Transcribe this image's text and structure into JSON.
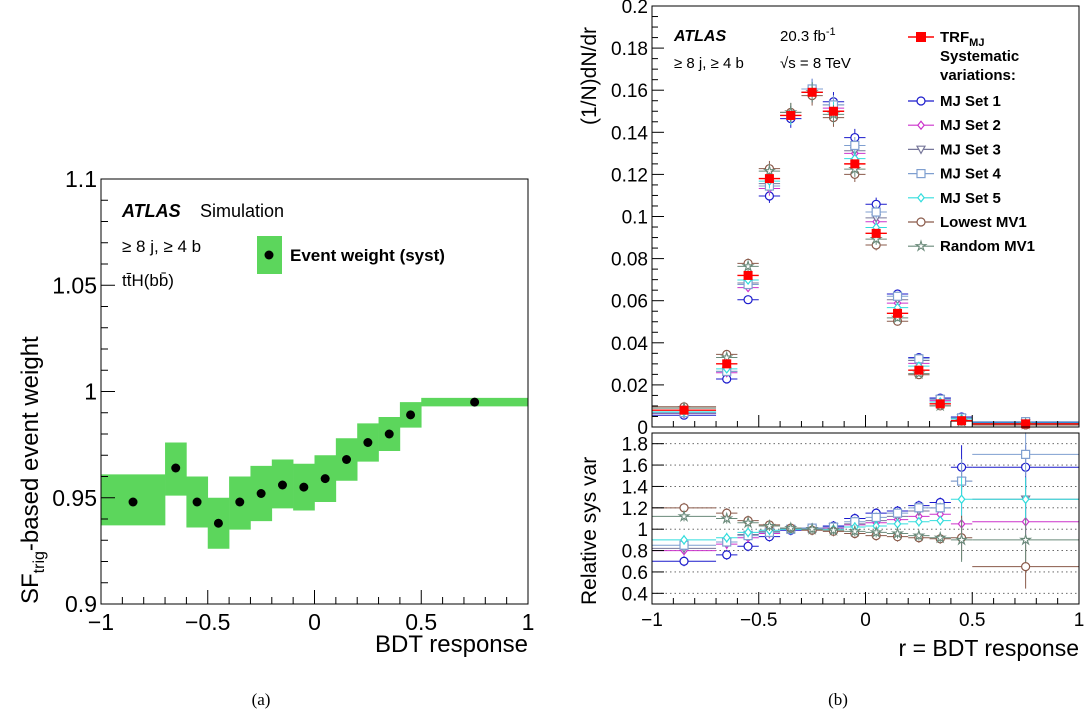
{
  "captions": [
    "(a)",
    "(b)"
  ],
  "colors": {
    "band": "#5cd65c",
    "trf": "#ff0000",
    "set1": "#1a1acc",
    "set2": "#cc33cc",
    "set3": "#77779a",
    "set4": "#7f9fd0",
    "set5": "#33dddd",
    "lowest": "#8a5a4a",
    "random": "#6a8a7a"
  },
  "chart_data": [
    {
      "type": "scatter",
      "panel": "a",
      "xlabel": "BDT response",
      "ylabel_main": "SF",
      "ylabel_sub": "trig",
      "ylabel_rest": "-based event weight",
      "xlim": [
        -1,
        1
      ],
      "ylim": [
        0.9,
        1.1
      ],
      "x_ticks": [
        "−1",
        "−0.5",
        "0",
        "0.5",
        "1"
      ],
      "y_ticks": [
        "0.9",
        "0.95",
        "1",
        "1.05",
        "1.1"
      ],
      "atlas_label": "ATLAS",
      "atlas_suffix": "Simulation",
      "selection_label": "≥ 8 j, ≥ 4 b",
      "process_label": "tt̄H(bb̄)",
      "legend": "Event weight (syst)",
      "bins": [
        {
          "lo": -1.0,
          "hi": -0.7,
          "y": 0.948,
          "band_lo": 0.937,
          "band_hi": 0.961
        },
        {
          "lo": -0.7,
          "hi": -0.6,
          "y": 0.964,
          "band_lo": 0.951,
          "band_hi": 0.976
        },
        {
          "lo": -0.6,
          "hi": -0.5,
          "y": 0.948,
          "band_lo": 0.936,
          "band_hi": 0.96
        },
        {
          "lo": -0.5,
          "hi": -0.4,
          "y": 0.938,
          "band_lo": 0.926,
          "band_hi": 0.95
        },
        {
          "lo": -0.4,
          "hi": -0.3,
          "y": 0.948,
          "band_lo": 0.935,
          "band_hi": 0.96
        },
        {
          "lo": -0.3,
          "hi": -0.2,
          "y": 0.952,
          "band_lo": 0.939,
          "band_hi": 0.965
        },
        {
          "lo": -0.2,
          "hi": -0.1,
          "y": 0.956,
          "band_lo": 0.945,
          "band_hi": 0.968
        },
        {
          "lo": -0.1,
          "hi": 0.0,
          "y": 0.955,
          "band_lo": 0.944,
          "band_hi": 0.966
        },
        {
          "lo": 0.0,
          "hi": 0.1,
          "y": 0.959,
          "band_lo": 0.948,
          "band_hi": 0.97
        },
        {
          "lo": 0.1,
          "hi": 0.2,
          "y": 0.968,
          "band_lo": 0.958,
          "band_hi": 0.978
        },
        {
          "lo": 0.2,
          "hi": 0.3,
          "y": 0.976,
          "band_lo": 0.967,
          "band_hi": 0.985
        },
        {
          "lo": 0.3,
          "hi": 0.4,
          "y": 0.98,
          "band_lo": 0.972,
          "band_hi": 0.988
        },
        {
          "lo": 0.4,
          "hi": 0.5,
          "y": 0.989,
          "band_lo": 0.983,
          "band_hi": 0.995
        },
        {
          "lo": 0.5,
          "hi": 1.0,
          "y": 0.995,
          "band_lo": 0.993,
          "band_hi": 0.997
        }
      ]
    },
    {
      "type": "scatter",
      "panel": "b",
      "xlabel": "r  =  BDT response",
      "ylabel_top": "(1/N)dN/dr",
      "ylabel_bottom": "Relative sys var",
      "xlim": [
        -1,
        1
      ],
      "ylim_top": [
        0,
        0.2
      ],
      "ylim_bottom": [
        0.3,
        1.9
      ],
      "x_ticks": [
        "−1",
        "−0.5",
        "0",
        "0.5",
        "1"
      ],
      "y_ticks_top": [
        "0.02",
        "0.04",
        "0.06",
        "0.08",
        "0.1",
        "0.12",
        "0.14",
        "0.16",
        "0.18",
        "0.2"
      ],
      "y_ticks_bottom": [
        "0.4",
        "0.6",
        "0.8",
        "1",
        "1.2",
        "1.4",
        "1.6",
        "1.8"
      ],
      "y_zero_label": "0",
      "atlas_label": "ATLAS",
      "selection_label": "≥ 8 j, ≥ 4 b",
      "lumi_label": "20.3 fb",
      "lumi_sup": "-1",
      "energy_label": "√s = 8 TeV",
      "legend": {
        "nominal": "TRF",
        "nominal_sub": "MJ",
        "header1": "Systematic",
        "header2": "variations:",
        "entries": [
          "MJ Set 1",
          "MJ Set 2",
          "MJ Set 3",
          "MJ Set 4",
          "MJ Set 5",
          "Lowest MV1",
          "Random MV1"
        ]
      },
      "bins": [
        {
          "lo": -1.0,
          "hi": -0.7,
          "nominal": 0.008
        },
        {
          "lo": -0.7,
          "hi": -0.6,
          "nominal": 0.03
        },
        {
          "lo": -0.6,
          "hi": -0.5,
          "nominal": 0.072
        },
        {
          "lo": -0.5,
          "hi": -0.4,
          "nominal": 0.118
        },
        {
          "lo": -0.4,
          "hi": -0.3,
          "nominal": 0.148
        },
        {
          "lo": -0.3,
          "hi": -0.2,
          "nominal": 0.159
        },
        {
          "lo": -0.2,
          "hi": -0.1,
          "nominal": 0.15
        },
        {
          "lo": -0.1,
          "hi": 0.0,
          "nominal": 0.125
        },
        {
          "lo": 0.0,
          "hi": 0.1,
          "nominal": 0.092
        },
        {
          "lo": 0.1,
          "hi": 0.2,
          "nominal": 0.054
        },
        {
          "lo": 0.2,
          "hi": 0.3,
          "nominal": 0.027
        },
        {
          "lo": 0.3,
          "hi": 0.4,
          "nominal": 0.011
        },
        {
          "lo": 0.4,
          "hi": 0.5,
          "nominal": 0.003
        },
        {
          "lo": 0.5,
          "hi": 1.0,
          "nominal": 0.0015
        }
      ],
      "ratios": [
        {
          "name": "MJ Set 1",
          "values": [
            0.7,
            0.76,
            0.84,
            0.93,
            0.99,
            1.01,
            1.03,
            1.1,
            1.15,
            1.17,
            1.22,
            1.25,
            1.58,
            1.58
          ]
        },
        {
          "name": "MJ Set 2",
          "values": [
            0.8,
            0.86,
            0.92,
            0.96,
            1.0,
            1.0,
            1.01,
            1.04,
            1.06,
            1.09,
            1.12,
            1.14,
            1.05,
            1.07
          ]
        },
        {
          "name": "MJ Set 3",
          "values": [
            0.82,
            0.88,
            0.95,
            0.98,
            1.0,
            1.0,
            1.02,
            1.05,
            1.08,
            1.12,
            1.17,
            1.2,
            1.45,
            1.28
          ]
        },
        {
          "name": "MJ Set 4",
          "values": [
            0.85,
            0.88,
            0.94,
            0.97,
            1.0,
            1.01,
            1.02,
            1.07,
            1.11,
            1.15,
            1.2,
            1.2,
            1.45,
            1.7
          ]
        },
        {
          "name": "MJ Set 5",
          "values": [
            0.9,
            0.92,
            0.97,
            0.99,
            1.0,
            1.0,
            1.0,
            1.02,
            1.03,
            1.05,
            1.07,
            1.08,
            1.28,
            1.28
          ]
        },
        {
          "name": "Lowest MV1",
          "values": [
            1.2,
            1.15,
            1.08,
            1.04,
            1.01,
            0.99,
            0.98,
            0.96,
            0.94,
            0.93,
            0.92,
            0.91,
            0.92,
            0.65
          ]
        },
        {
          "name": "Random MV1",
          "values": [
            1.12,
            1.1,
            1.06,
            1.03,
            1.01,
            1.0,
            0.99,
            0.98,
            0.97,
            0.96,
            0.94,
            0.92,
            0.9,
            0.9
          ]
        }
      ]
    }
  ]
}
